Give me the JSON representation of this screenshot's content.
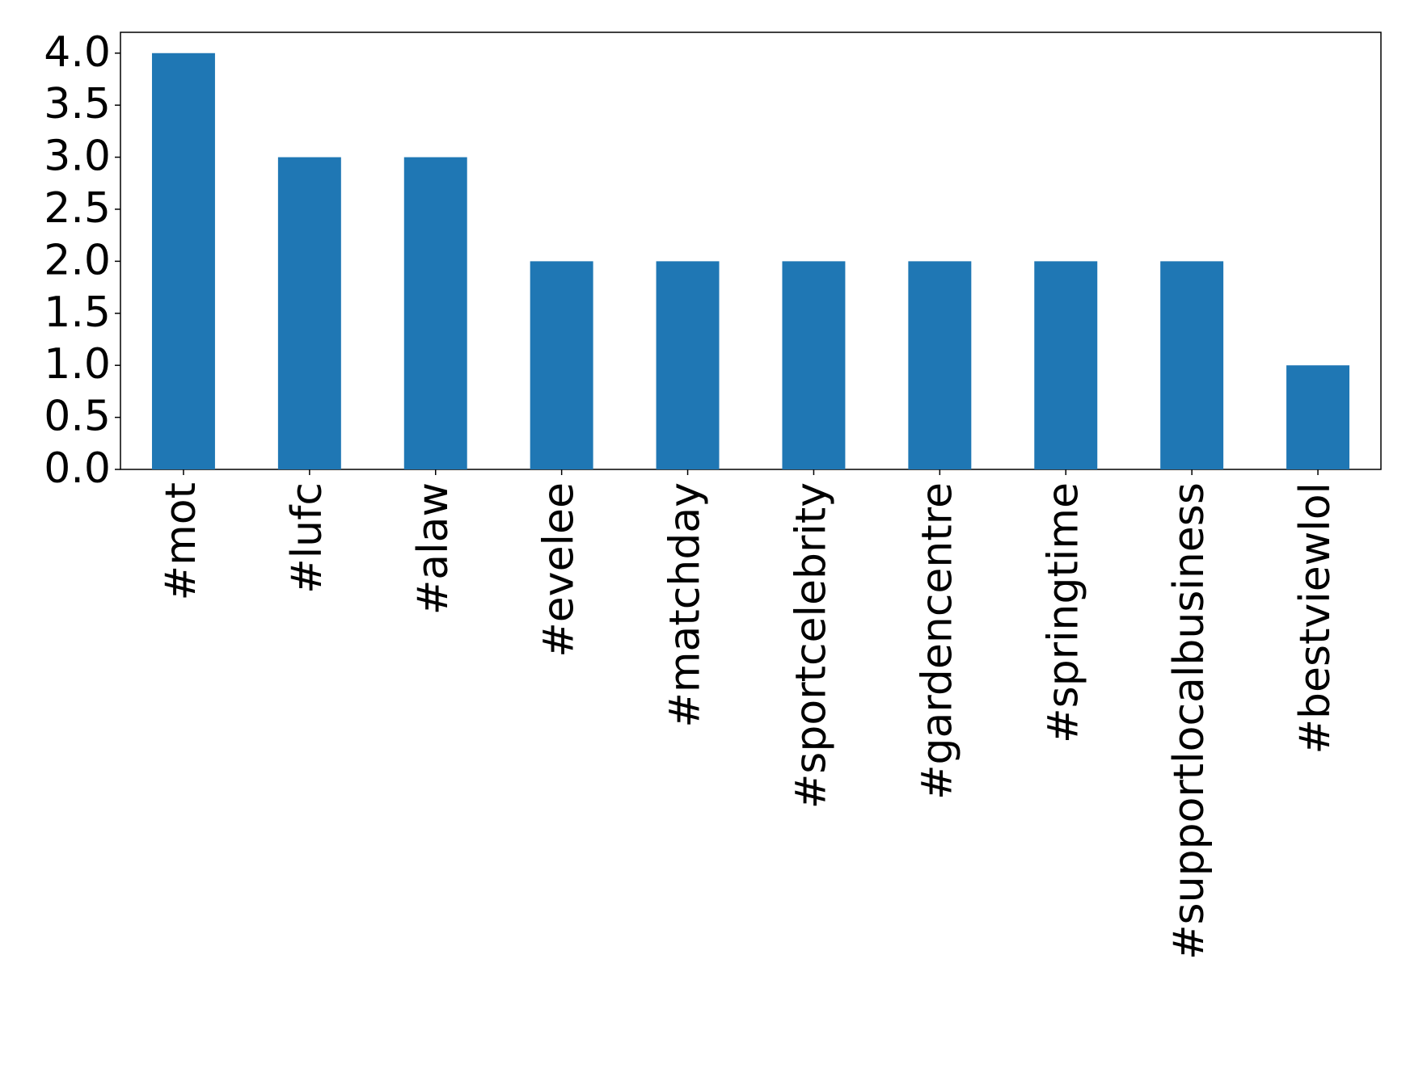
{
  "chart_data": {
    "type": "bar",
    "categories": [
      "#mot",
      "#lufc",
      "#alaw",
      "#evelee",
      "#matchday",
      "#sportcelebrity",
      "#gardencentre",
      "#springtime",
      "#supportlocalbusiness",
      "#bestviewlol"
    ],
    "values": [
      4,
      3,
      3,
      2,
      2,
      2,
      2,
      2,
      2,
      1
    ],
    "color": "#1f77b4",
    "ylim": [
      0,
      4.2
    ],
    "yticks": [
      {
        "value": 0,
        "label": "0.0"
      },
      {
        "value": 0.5,
        "label": "0.5"
      },
      {
        "value": 1,
        "label": "1.0"
      },
      {
        "value": 1.5,
        "label": "1.5"
      },
      {
        "value": 2,
        "label": "2.0"
      },
      {
        "value": 2.5,
        "label": "2.5"
      },
      {
        "value": 3,
        "label": "3.0"
      },
      {
        "value": 3.5,
        "label": "3.5"
      },
      {
        "value": 4,
        "label": "4.0"
      }
    ],
    "grid": false
  }
}
